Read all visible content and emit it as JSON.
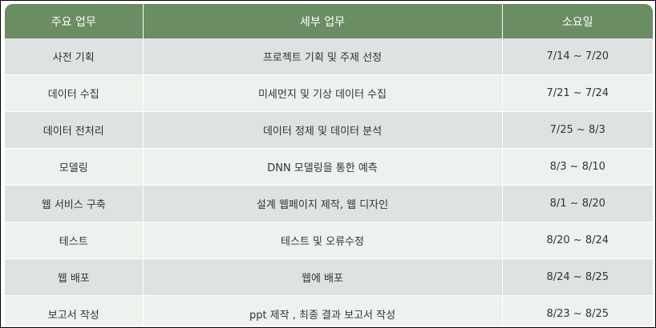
{
  "table": {
    "headers": [
      "주요 업무",
      "세부 업무",
      "소요일"
    ],
    "rows": [
      [
        "사전 기획",
        "프로젝트 기획 및 주제 선정",
        "7/14 ~ 7/20"
      ],
      [
        "데이터 수집",
        "미세먼지 및 기상 데이터 수집",
        "7/21 ~ 7/24"
      ],
      [
        "데이터 전처리",
        "데이터 정제 및 데이터 분석",
        "7/25 ~ 8/3"
      ],
      [
        "모델링",
        "DNN 모델링을 통한 예측",
        "8/3 ~ 8/10"
      ],
      [
        "웹 서비스 구축",
        "설계 웹페이지 제작, 웹 디자인",
        "8/1 ~ 8/20"
      ],
      [
        "테스트",
        "테스트 및 오류수정",
        "8/20 ~ 8/24"
      ],
      [
        "웹 배포",
        "웹에 배포",
        "8/24 ~ 8/25"
      ],
      [
        "보고서 작성",
        "ppt 제작 , 최종 결과 보고서 작성",
        "8/23 ~ 8/25"
      ]
    ]
  },
  "colors": {
    "header_bg": "#6b8d63",
    "header_text": "#ffffff",
    "row_odd": "#dfe2e2",
    "row_even": "#eef2ee",
    "cell_text": "#333333"
  }
}
